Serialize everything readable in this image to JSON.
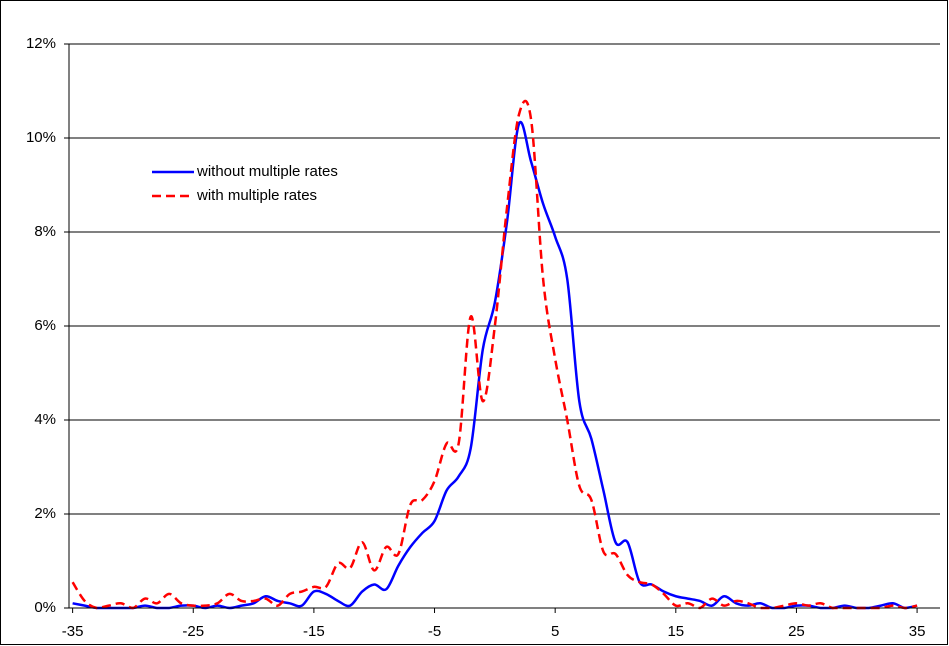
{
  "chart_data": {
    "type": "line",
    "x": [
      -35,
      -34,
      -33,
      -32,
      -31,
      -30,
      -29,
      -28,
      -27,
      -26,
      -25,
      -24,
      -23,
      -22,
      -21,
      -20,
      -19,
      -18,
      -17,
      -16,
      -15,
      -14,
      -13,
      -12,
      -11,
      -10,
      -9,
      -8,
      -7,
      -6,
      -5,
      -4,
      -3,
      -2,
      -1,
      0,
      1,
      2,
      3,
      4,
      5,
      6,
      7,
      8,
      9,
      10,
      11,
      12,
      13,
      14,
      15,
      16,
      17,
      18,
      19,
      20,
      21,
      22,
      23,
      24,
      25,
      26,
      27,
      28,
      29,
      30,
      31,
      32,
      33,
      34,
      35
    ],
    "series": [
      {
        "name": "without multiple rates",
        "color": "#0000ff",
        "dash": false,
        "values": [
          0.1,
          0.05,
          0,
          0,
          0,
          0,
          0.05,
          0,
          0,
          0.05,
          0.05,
          0,
          0.05,
          0,
          0.05,
          0.1,
          0.25,
          0.15,
          0.1,
          0.05,
          0.35,
          0.3,
          0.15,
          0.05,
          0.35,
          0.5,
          0.4,
          0.9,
          1.3,
          1.6,
          1.85,
          2.5,
          2.8,
          3.4,
          5.5,
          6.5,
          8.2,
          10.3,
          9.5,
          8.6,
          7.9,
          7.0,
          4.4,
          3.6,
          2.5,
          1.4,
          1.4,
          0.55,
          0.5,
          0.35,
          0.25,
          0.2,
          0.15,
          0.05,
          0.25,
          0.1,
          0.05,
          0.1,
          0,
          0,
          0.05,
          0.05,
          0,
          0,
          0.05,
          0,
          0,
          0.05,
          0.1,
          0,
          0.05
        ]
      },
      {
        "name": "with multiple rates",
        "color": "#ff0000",
        "dash": true,
        "values": [
          0.55,
          0.15,
          0,
          0.05,
          0.1,
          0,
          0.2,
          0.1,
          0.3,
          0.1,
          0.05,
          0.05,
          0.1,
          0.3,
          0.15,
          0.15,
          0.2,
          0.05,
          0.3,
          0.35,
          0.45,
          0.45,
          0.95,
          0.85,
          1.4,
          0.8,
          1.3,
          1.15,
          2.2,
          2.3,
          2.7,
          3.5,
          3.5,
          6.2,
          4.4,
          6.0,
          8.5,
          10.5,
          10.4,
          7.0,
          5.3,
          4.0,
          2.6,
          2.3,
          1.2,
          1.15,
          0.7,
          0.55,
          0.5,
          0.3,
          0.05,
          0.1,
          0,
          0.2,
          0.05,
          0.15,
          0.1,
          0,
          0,
          0.05,
          0.1,
          0.05,
          0.1,
          0,
          0,
          0,
          0,
          0,
          0.05,
          0,
          0.05
        ]
      }
    ],
    "xlim": [
      -35.3,
      36.9
    ],
    "xticks": [
      -35,
      -25,
      -15,
      -5,
      5,
      15,
      25,
      35
    ],
    "ylim": [
      0,
      12
    ],
    "yticks": [
      {
        "value": 0,
        "label": "0%"
      },
      {
        "value": 2,
        "label": "2%"
      },
      {
        "value": 4,
        "label": "4%"
      },
      {
        "value": 6,
        "label": "6%"
      },
      {
        "value": 8,
        "label": "8%"
      },
      {
        "value": 10,
        "label": "10%"
      },
      {
        "value": 12,
        "label": "12%"
      }
    ],
    "grid": true,
    "legend": "upper left"
  }
}
